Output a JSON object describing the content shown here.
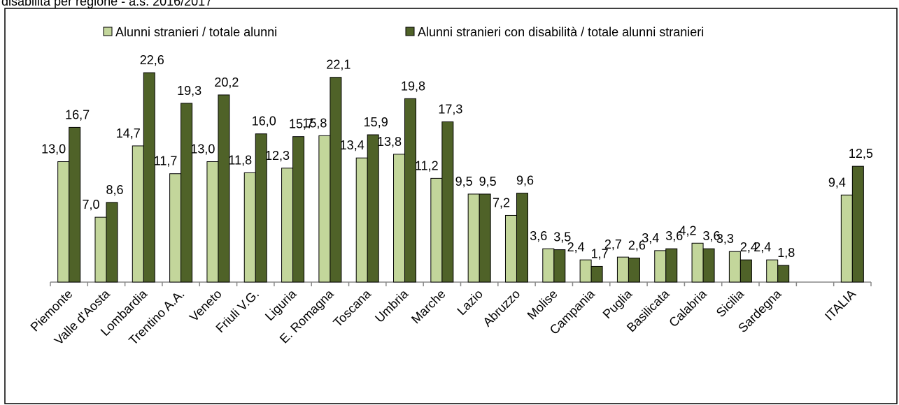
{
  "chart_data": {
    "type": "bar",
    "title": "disabilità per regione - a.s. 2016/2017",
    "categories": [
      "Piemonte",
      "Valle d'Aosta",
      "Lombardia",
      "Trentino A.A.",
      "Veneto",
      "Friuli V.G.",
      "Liguria",
      "E. Romagna",
      "Toscana",
      "Umbria",
      "Marche",
      "Lazio",
      "Abruzzo",
      "Molise",
      "Campania",
      "Puglia",
      "Basilicata",
      "Calabria",
      "Sicilia",
      "Sardegna",
      null,
      "ITALIA"
    ],
    "series": [
      {
        "name": "Alunni stranieri / totale alunni",
        "color": "#c3d69b",
        "values": [
          13.0,
          7.0,
          14.7,
          11.7,
          13.0,
          11.8,
          12.3,
          15.8,
          13.4,
          13.8,
          11.2,
          9.5,
          7.2,
          3.6,
          2.4,
          2.7,
          3.4,
          4.2,
          3.3,
          2.4,
          null,
          9.4
        ],
        "value_labels": [
          "13,0",
          "7,0",
          "14,7",
          "11,7",
          "13,0",
          "11,8",
          "12,3",
          "15,8",
          "13,4",
          "13,8",
          "11,2",
          "9,5",
          "7,2",
          "3,6",
          "2,4",
          "2,7",
          "3,4",
          "4,2",
          "3,3",
          "2,4",
          null,
          "9,4"
        ]
      },
      {
        "name": "Alunni stranieri con disabilità / totale alunni stranieri",
        "color": "#4f6228",
        "values": [
          16.7,
          8.6,
          22.6,
          19.3,
          20.2,
          16.0,
          15.7,
          22.1,
          15.9,
          19.8,
          17.3,
          9.5,
          9.6,
          3.5,
          1.7,
          2.6,
          3.6,
          3.6,
          2.4,
          1.8,
          null,
          12.5
        ],
        "value_labels": [
          "16,7",
          "8,6",
          "22,6",
          "19,3",
          "20,2",
          "16,0",
          "15,7",
          "22,1",
          "15,9",
          "19,8",
          "17,3",
          "9,5",
          "9,6",
          "3,5",
          "1,7",
          "2,6",
          "3,6",
          "3,6",
          "2,4",
          "1,8",
          null,
          "12,5"
        ]
      }
    ],
    "ylim": [
      0,
      25
    ],
    "legend": "top"
  }
}
